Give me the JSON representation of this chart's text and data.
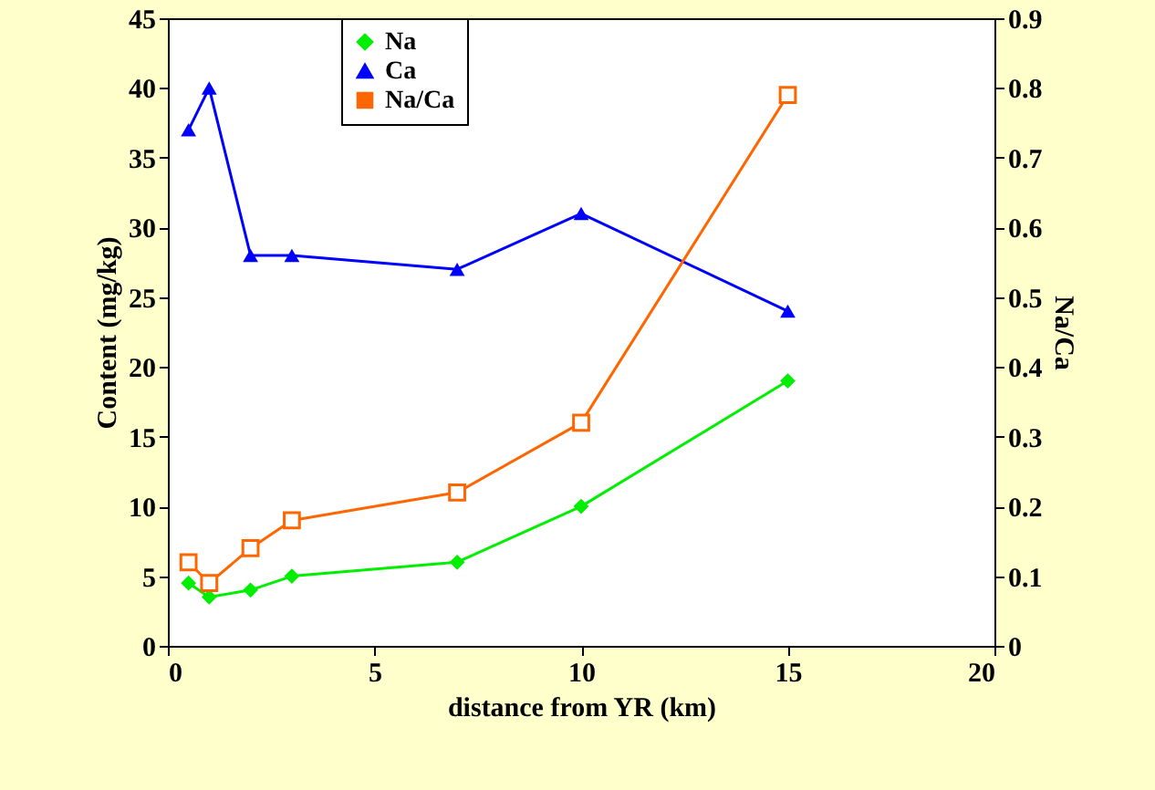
{
  "chart_data": {
    "type": "line",
    "xlabel": "distance from YR    (km)",
    "ylabel": "Content (mg/kg)",
    "y2label": "Na/Ca",
    "x": [
      0.5,
      1,
      2,
      3,
      7,
      10,
      15
    ],
    "series": [
      {
        "name": "Na",
        "color": "#00ee00",
        "marker": "diamond",
        "values": [
          4.5,
          3.5,
          4,
          5,
          6,
          10,
          19
        ]
      },
      {
        "name": "Ca",
        "color": "#0000ff",
        "marker": "triangle",
        "values": [
          37,
          40,
          28,
          28,
          27,
          31,
          24
        ]
      },
      {
        "name": "Na/Ca",
        "color": "#ff6600",
        "marker": "square",
        "axis": "y2",
        "values": [
          0.12,
          0.09,
          0.14,
          0.18,
          0.22,
          0.32,
          0.79
        ]
      }
    ],
    "xlim": [
      0,
      20
    ],
    "xticks": [
      0,
      5,
      10,
      15,
      20
    ],
    "ylim": [
      0,
      45
    ],
    "yticks": [
      0,
      5,
      10,
      15,
      20,
      25,
      30,
      35,
      40,
      45
    ],
    "y2lim": [
      0,
      0.9
    ],
    "y2ticks": [
      0,
      0.1,
      0.2,
      0.3,
      0.4,
      0.5,
      0.6,
      0.7,
      0.8,
      0.9
    ],
    "grid": false,
    "legend": "top left",
    "line_style": "solid"
  }
}
